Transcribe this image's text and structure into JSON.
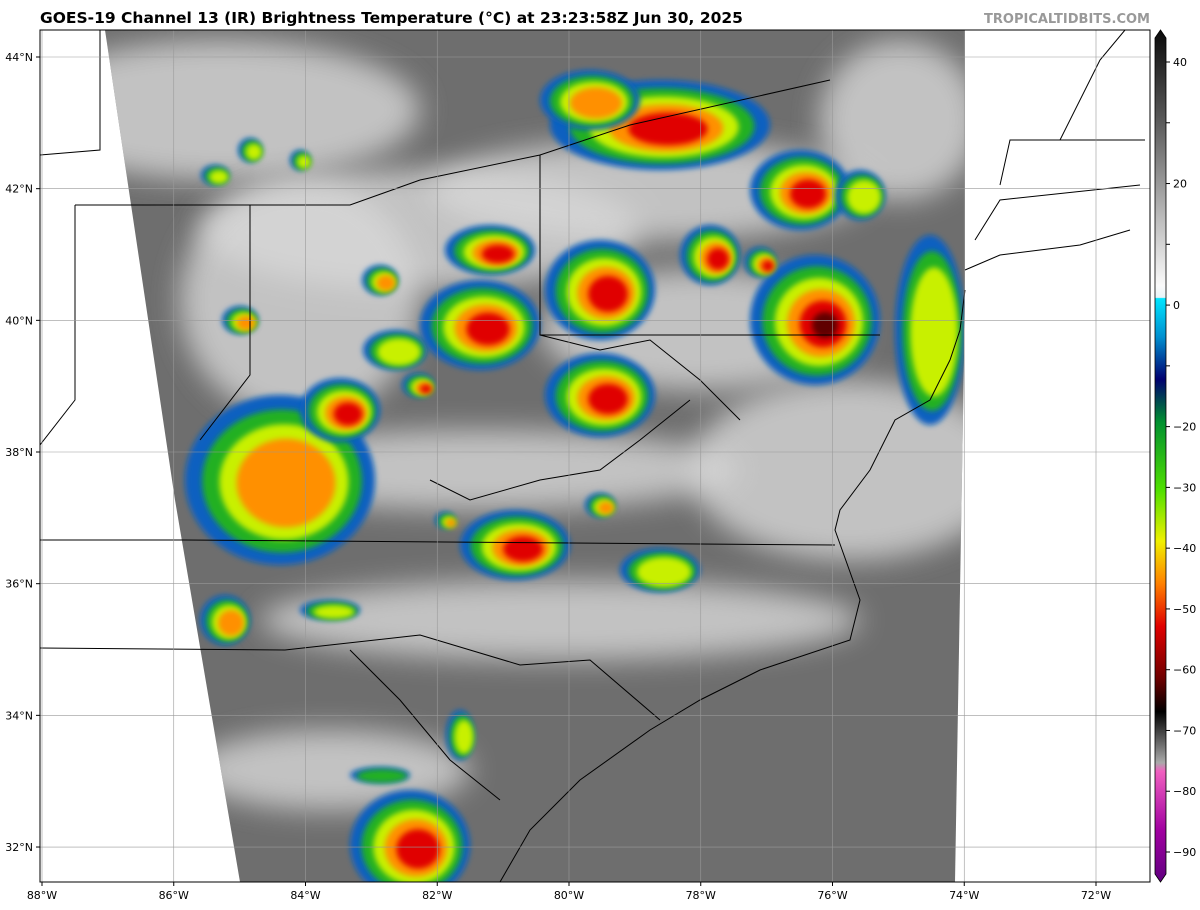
{
  "header": {
    "title": "GOES-19 Channel 13 (IR) Brightness Temperature (°C) at 23:23:58Z Jun 30, 2025",
    "credit": "TROPICALTIDBITS.COM"
  },
  "map": {
    "lon_labels": [
      "88°W",
      "86°W",
      "84°W",
      "82°W",
      "80°W",
      "78°W",
      "76°W",
      "74°W",
      "72°W"
    ],
    "lat_labels": [
      "44°N",
      "42°N",
      "40°N",
      "38°N",
      "36°N",
      "34°N",
      "32°N"
    ]
  },
  "colorbar": {
    "ticks": [
      40,
      30,
      20,
      10,
      0,
      -10,
      -20,
      -30,
      -40,
      -50,
      -60,
      -70,
      -80,
      -90
    ],
    "labels": [
      "40",
      "",
      "20",
      "",
      "0",
      "",
      "−20",
      "−30",
      "−40",
      "−50",
      "−60",
      "−70",
      "−80",
      "−90"
    ]
  }
}
